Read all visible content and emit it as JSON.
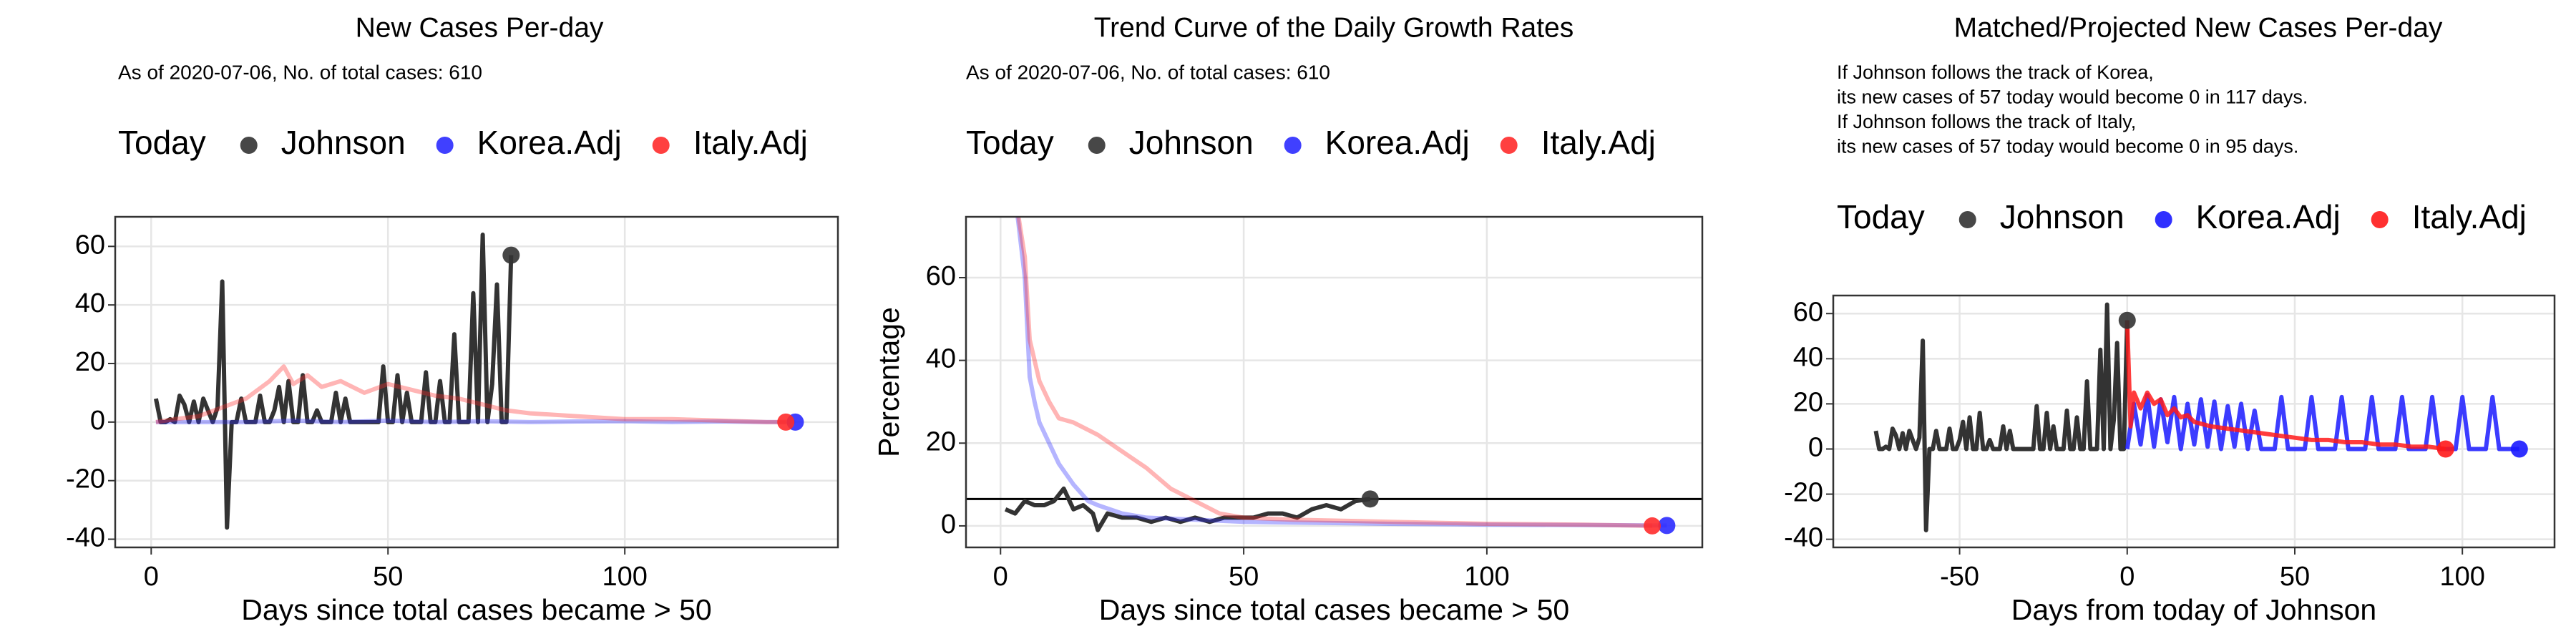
{
  "chart_data": [
    {
      "type": "line",
      "title": "New Cases Per-day",
      "subtitle": "As of 2020-07-06, No. of total cases: 610",
      "legend_title": "Today",
      "xlabel": "Days since total cases became > 50",
      "xlim": [
        -7.6,
        145
      ],
      "xticks": [
        0,
        50,
        100
      ],
      "ylim": [
        -42.8,
        70.1
      ],
      "yticks": [
        -40,
        -20,
        0,
        20,
        40,
        60
      ],
      "grid": true,
      "series": [
        {
          "name": "Johnson",
          "color": "#333333",
          "opacity": 1,
          "x": [
            1,
            2,
            3,
            4,
            5,
            6,
            7,
            8,
            9,
            10,
            11,
            12,
            13,
            14,
            15,
            16,
            17,
            18,
            19,
            20,
            21,
            22,
            23,
            24,
            25,
            26,
            27,
            28,
            29,
            30,
            31,
            32,
            33,
            34,
            35,
            36,
            37,
            38,
            39,
            40,
            41,
            42,
            43,
            44,
            45,
            46,
            47,
            48,
            49,
            50,
            51,
            52,
            53,
            54,
            55,
            56,
            57,
            58,
            59,
            60,
            61,
            62,
            63,
            64,
            65,
            66,
            67,
            68,
            69,
            70,
            71,
            72,
            73,
            74,
            75,
            76
          ],
          "values": [
            8,
            0,
            0,
            1,
            0,
            9,
            6,
            0,
            7,
            0,
            8,
            4,
            0,
            5,
            48,
            -36,
            0,
            0,
            8,
            0,
            0,
            0,
            9,
            0,
            0,
            4,
            12,
            0,
            14,
            0,
            0,
            16,
            0,
            0,
            4,
            0,
            0,
            0,
            10,
            0,
            8,
            0,
            0,
            0,
            0,
            0,
            0,
            0,
            19,
            0,
            0,
            16,
            0,
            10,
            0,
            0,
            0,
            17,
            0,
            0,
            14,
            0,
            0,
            30,
            0,
            0,
            0,
            44,
            0,
            64,
            0,
            13,
            47,
            0,
            0,
            57
          ]
        },
        {
          "name": "Korea.Adj",
          "color": "#2b2bff",
          "opacity": 0.35,
          "x": [
            1,
            10,
            20,
            30,
            40,
            50,
            60,
            70,
            80,
            90,
            100,
            110,
            120,
            130,
            136
          ],
          "values": [
            0,
            0,
            0,
            0.5,
            0,
            0.5,
            0,
            0.3,
            0,
            0.2,
            0.3,
            0,
            0.2,
            0,
            0
          ]
        },
        {
          "name": "Italy.Adj",
          "color": "#ff2b2b",
          "opacity": 0.35,
          "x": [
            1,
            5,
            10,
            15,
            20,
            25,
            28,
            30,
            33,
            36,
            40,
            45,
            50,
            55,
            60,
            65,
            70,
            75,
            80,
            90,
            100,
            110,
            120,
            130,
            134
          ],
          "values": [
            0,
            1,
            2,
            5,
            8,
            14,
            19,
            13,
            16,
            12,
            14,
            10,
            13,
            11,
            9,
            8,
            6,
            4,
            3,
            2,
            1,
            1,
            0.5,
            0,
            0
          ]
        }
      ]
    },
    {
      "type": "line",
      "title": "Trend Curve of the Daily Growth Rates",
      "subtitle": "As of 2020-07-06, No. of total cases: 610",
      "legend_title": "Today",
      "xlabel": "Days since total cases became > 50",
      "ylabel": "Percentage",
      "xlim": [
        -7.1,
        144.3
      ],
      "xticks": [
        0,
        50,
        100
      ],
      "ylim": [
        -5.2,
        74.7
      ],
      "yticks": [
        0,
        20,
        40,
        60
      ],
      "grid": true,
      "hline": 6.5,
      "series": [
        {
          "name": "Johnson",
          "color": "#333333",
          "opacity": 1,
          "x": [
            1,
            3,
            5,
            7,
            9,
            11,
            13,
            15,
            17,
            19,
            20,
            22,
            25,
            28,
            31,
            34,
            37,
            40,
            43,
            46,
            49,
            52,
            55,
            58,
            61,
            64,
            67,
            70,
            73,
            76
          ],
          "values": [
            4,
            3,
            6,
            5,
            5,
            6,
            9,
            4,
            5,
            3,
            -1,
            3,
            2,
            2,
            1,
            2,
            1,
            2,
            1,
            2,
            2,
            2,
            3,
            3,
            2,
            4,
            5,
            4,
            6,
            6.5
          ]
        },
        {
          "name": "Korea.Adj",
          "color": "#2b2bff",
          "opacity": 0.35,
          "x": [
            3,
            5,
            6,
            7,
            8,
            10,
            12,
            15,
            18,
            20,
            25,
            30,
            40,
            50,
            60,
            80,
            100,
            120,
            137
          ],
          "values": [
            80,
            60,
            36,
            30,
            25,
            20,
            15,
            10,
            6,
            5,
            3,
            2,
            1.5,
            1,
            0.8,
            0.5,
            0.3,
            0.2,
            0.1
          ]
        },
        {
          "name": "Italy.Adj",
          "color": "#ff2b2b",
          "opacity": 0.35,
          "x": [
            3,
            5,
            6,
            7,
            8,
            10,
            12,
            15,
            20,
            25,
            30,
            35,
            40,
            45,
            50,
            60,
            80,
            100,
            120,
            134
          ],
          "values": [
            80,
            65,
            45,
            40,
            35,
            30,
            26,
            25,
            22,
            18,
            14,
            9,
            6,
            3,
            2,
            1.5,
            1,
            0.5,
            0.3,
            0
          ]
        }
      ]
    },
    {
      "type": "line",
      "title": "Matched/Projected New Cases Per-day",
      "annotation": [
        "If Johnson follows the track of Korea,",
        "its new cases of 57 today would become 0 in 117 days.",
        "If Johnson follows the track of Italy,",
        "its new cases of 57 today would become 0 in 95 days."
      ],
      "legend_title": "Today",
      "xlabel": "Days from today of Johnson",
      "xlim": [
        -87.7,
        127.5
      ],
      "xticks": [
        -50,
        0,
        50,
        100
      ],
      "ylim": [
        -43.6,
        68
      ],
      "yticks": [
        -40,
        -20,
        0,
        20,
        40,
        60
      ],
      "grid": true,
      "series": [
        {
          "name": "Johnson",
          "color": "#333333",
          "opacity": 1,
          "x": [
            -75,
            -74,
            -73,
            -72,
            -71,
            -70,
            -69,
            -68,
            -67,
            -66,
            -65,
            -64,
            -63,
            -62,
            -61,
            -60,
            -59,
            -58,
            -57,
            -56,
            -55,
            -54,
            -53,
            -52,
            -51,
            -50,
            -49,
            -48,
            -47,
            -46,
            -45,
            -44,
            -43,
            -42,
            -41,
            -40,
            -39,
            -38,
            -37,
            -36,
            -35,
            -34,
            -33,
            -32,
            -31,
            -30,
            -29,
            -28,
            -27,
            -26,
            -25,
            -24,
            -23,
            -22,
            -21,
            -20,
            -19,
            -18,
            -17,
            -16,
            -15,
            -14,
            -13,
            -12,
            -11,
            -10,
            -9,
            -8,
            -7,
            -6,
            -5,
            -4,
            -3,
            -2,
            -1,
            0
          ],
          "values": [
            8,
            0,
            0,
            1,
            0,
            9,
            6,
            0,
            7,
            0,
            8,
            4,
            0,
            5,
            48,
            -36,
            0,
            0,
            8,
            0,
            0,
            0,
            9,
            0,
            0,
            4,
            12,
            0,
            14,
            0,
            0,
            16,
            0,
            0,
            4,
            0,
            0,
            0,
            10,
            0,
            8,
            0,
            0,
            0,
            0,
            0,
            0,
            0,
            19,
            0,
            0,
            16,
            0,
            10,
            0,
            0,
            0,
            17,
            0,
            0,
            14,
            0,
            0,
            30,
            0,
            0,
            0,
            44,
            0,
            64,
            0,
            13,
            47,
            0,
            0,
            57
          ]
        },
        {
          "name": "Korea.Adj",
          "color": "#1a1aff",
          "opacity": 0.85,
          "x": [
            0,
            2,
            4,
            6,
            8,
            10,
            12,
            14,
            16,
            18,
            20,
            22,
            24,
            26,
            28,
            30,
            32,
            34,
            36,
            38,
            40,
            44,
            46,
            48,
            53,
            55,
            57,
            62,
            64,
            66,
            71,
            73,
            75,
            80,
            82,
            84,
            89,
            91,
            93,
            98,
            100,
            102,
            107,
            109,
            111,
            114,
            116,
            117
          ],
          "values": [
            0,
            20,
            2,
            24,
            1,
            22,
            3,
            23,
            0,
            20,
            2,
            22,
            1,
            21,
            0,
            19,
            1,
            20,
            0,
            17,
            0,
            0,
            23,
            0,
            0,
            23,
            0,
            0,
            23,
            0,
            0,
            23,
            0,
            0,
            23,
            0,
            0,
            23,
            0,
            0,
            23,
            0,
            0,
            23,
            0,
            0,
            0,
            0
          ]
        },
        {
          "name": "Italy.Adj",
          "color": "#ff1a1a",
          "opacity": 0.85,
          "x": [
            0,
            1,
            2,
            4,
            6,
            8,
            10,
            12,
            14,
            16,
            18,
            20,
            25,
            30,
            35,
            40,
            45,
            50,
            55,
            60,
            65,
            70,
            75,
            80,
            85,
            90,
            95
          ],
          "values": [
            57,
            10,
            25,
            18,
            25,
            20,
            22,
            15,
            18,
            14,
            15,
            12,
            10,
            9,
            8,
            7,
            6,
            5,
            4,
            4,
            3,
            3,
            2,
            2,
            1,
            1,
            0
          ]
        }
      ]
    }
  ]
}
